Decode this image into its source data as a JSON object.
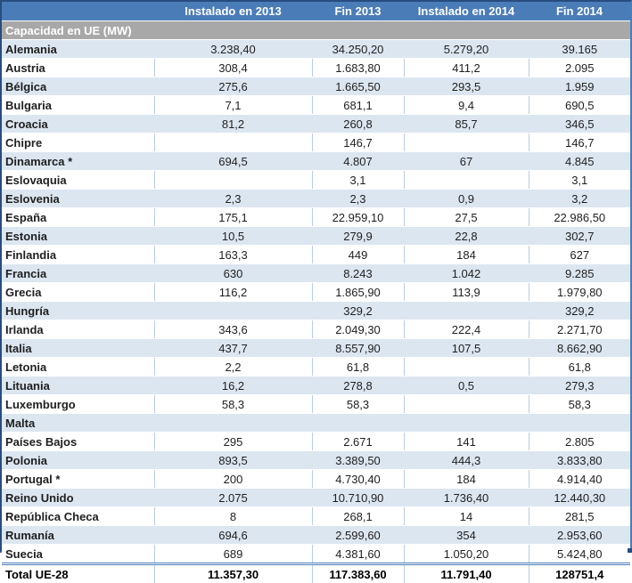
{
  "colors": {
    "header_bg": "#4A7CB8",
    "section_bg": "#A8A8A8",
    "band_bg": "#DCE6F1",
    "grid_line": "#B9CDE3",
    "outer_border": "#274C7F",
    "accent": "#4A7EBB"
  },
  "table": {
    "corner_label": "",
    "columns": [
      "Instalado en 2013",
      "Fin 2013",
      "Instalado en 2014",
      "Fin 2014"
    ],
    "section_header": "Capacidad en UE (MW)",
    "rows": [
      {
        "country": "Alemania",
        "values": [
          "3.238,40",
          "34.250,20",
          "5.279,20",
          "39.165"
        ]
      },
      {
        "country": "Austria",
        "values": [
          "308,4",
          "1.683,80",
          "411,2",
          "2.095"
        ]
      },
      {
        "country": "Bélgica",
        "values": [
          "275,6",
          "1.665,50",
          "293,5",
          "1.959"
        ]
      },
      {
        "country": "Bulgaria",
        "values": [
          "7,1",
          "681,1",
          "9,4",
          "690,5"
        ]
      },
      {
        "country": "Croacia",
        "values": [
          "81,2",
          "260,8",
          "85,7",
          "346,5"
        ]
      },
      {
        "country": "Chipre",
        "values": [
          "",
          "146,7",
          "",
          "146,7"
        ]
      },
      {
        "country": "Dinamarca *",
        "values": [
          "694,5",
          "4.807",
          "67",
          "4.845"
        ]
      },
      {
        "country": "Eslovaquia",
        "values": [
          "",
          "3,1",
          "",
          "3,1"
        ]
      },
      {
        "country": "Eslovenia",
        "values": [
          "2,3",
          "2,3",
          "0,9",
          "3,2"
        ]
      },
      {
        "country": "España",
        "values": [
          "175,1",
          "22.959,10",
          "27,5",
          "22.986,50"
        ]
      },
      {
        "country": "Estonia",
        "values": [
          "10,5",
          "279,9",
          "22,8",
          "302,7"
        ]
      },
      {
        "country": "Finlandia",
        "values": [
          "163,3",
          "449",
          "184",
          "627"
        ]
      },
      {
        "country": "Francia",
        "values": [
          "630",
          "8.243",
          "1.042",
          "9.285"
        ]
      },
      {
        "country": "Grecia",
        "values": [
          "116,2",
          "1.865,90",
          "113,9",
          "1.979,80"
        ]
      },
      {
        "country": "Hungría",
        "values": [
          "",
          "329,2",
          "",
          "329,2"
        ]
      },
      {
        "country": "Irlanda",
        "values": [
          "343,6",
          "2.049,30",
          "222,4",
          "2.271,70"
        ]
      },
      {
        "country": "Italia",
        "values": [
          "437,7",
          "8.557,90",
          "107,5",
          "8.662,90"
        ]
      },
      {
        "country": "Letonia",
        "values": [
          "2,2",
          "61,8",
          "",
          "61,8"
        ]
      },
      {
        "country": "Lituania",
        "values": [
          "16,2",
          "278,8",
          "0,5",
          "279,3"
        ]
      },
      {
        "country": "Luxemburgo",
        "values": [
          "58,3",
          "58,3",
          "",
          "58,3"
        ]
      },
      {
        "country": "Malta",
        "values": [
          "",
          "",
          "",
          ""
        ]
      },
      {
        "country": "Países Bajos",
        "values": [
          "295",
          "2.671",
          "141",
          "2.805"
        ]
      },
      {
        "country": "Polonia",
        "values": [
          "893,5",
          "3.389,50",
          "444,3",
          "3.833,80"
        ]
      },
      {
        "country": "Portugal *",
        "values": [
          "200",
          "4.730,40",
          "184",
          "4.914,40"
        ]
      },
      {
        "country": "Reino Unido",
        "values": [
          "2.075",
          "10.710,90",
          "1.736,40",
          "12.440,30"
        ]
      },
      {
        "country": "República Checa",
        "values": [
          "8",
          "268,1",
          "14",
          "281,5"
        ]
      },
      {
        "country": "Rumanía",
        "values": [
          "694,6",
          "2.599,60",
          "354",
          "2.953,60"
        ]
      },
      {
        "country": "Suecia",
        "values": [
          "689",
          "4.381,60",
          "1.050,20",
          "5.424,80"
        ]
      }
    ],
    "total": {
      "label": "Total UE-28",
      "values": [
        "11.357,30",
        "117.383,60",
        "11.791,40",
        "128751,4"
      ]
    }
  }
}
